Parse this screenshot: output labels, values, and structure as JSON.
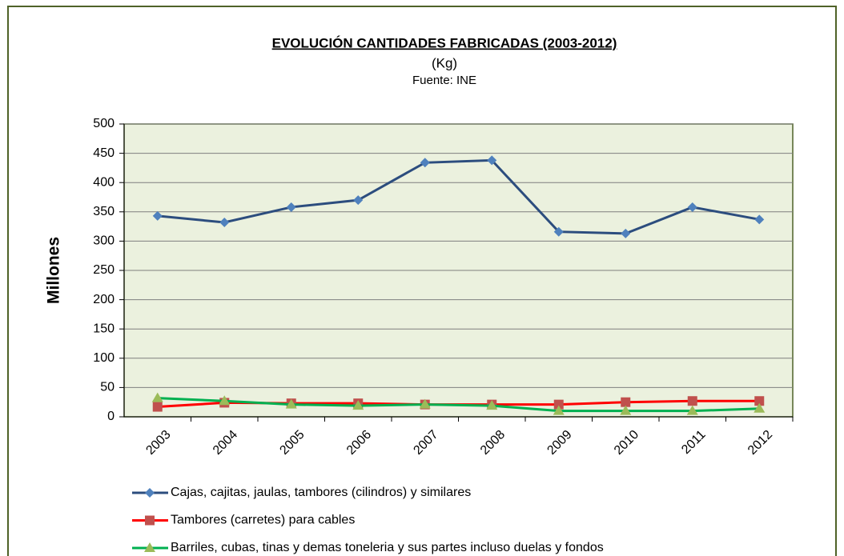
{
  "chart_data": {
    "type": "line",
    "title": "EVOLUCIÓN CANTIDADES FABRICADAS (2003-2012)",
    "subtitle": "(Kg)",
    "source": "Fuente: INE",
    "y_label": "Millones",
    "categories": [
      "2003",
      "2004",
      "2005",
      "2006",
      "2007",
      "2008",
      "2009",
      "2010",
      "2011",
      "2012"
    ],
    "series": [
      {
        "name": "Cajas, cajitas, jaulas, tambores (cilindros) y similares",
        "color": "#2c4d7e",
        "marker_color": "#4f81bd",
        "marker": "diamond",
        "values": [
          343,
          332,
          358,
          370,
          434,
          438,
          316,
          313,
          358,
          337
        ]
      },
      {
        "name": "Tambores (carretes) para cables",
        "color": "#ff0000",
        "marker_color": "#c0504d",
        "marker": "square",
        "values": [
          17,
          24,
          23,
          23,
          21,
          21,
          21,
          25,
          27,
          27
        ]
      },
      {
        "name": "Barriles, cubas, tinas y demas toneleria y sus partes incluso duelas y fondos",
        "color": "#00b050",
        "marker_color": "#9bbb59",
        "marker": "triangle",
        "values": [
          32,
          27,
          21,
          19,
          21,
          19,
          10,
          10,
          10,
          14
        ]
      }
    ],
    "ylim": [
      0,
      500
    ],
    "yticks": [
      0,
      50,
      100,
      150,
      200,
      250,
      300,
      350,
      400,
      450,
      500
    ],
    "grid": true,
    "legend": "bottom"
  }
}
